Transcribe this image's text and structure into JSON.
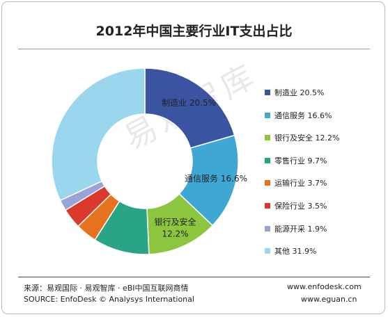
{
  "title": "2012年中国主要行业IT支出占比",
  "watermark": "易观智库",
  "chart_data": {
    "type": "pie",
    "variant": "donut",
    "title": "2012年中国主要行业IT支出占比",
    "legend_position": "right",
    "slices": [
      {
        "name": "制造业",
        "value": 20.5,
        "label": "20.5%",
        "color": "#3a54a2",
        "slice_label": [
          "制造业 20.5%"
        ],
        "label_color": "#222222"
      },
      {
        "name": "通信服务",
        "value": 16.6,
        "label": "16.6%",
        "color": "#3fa7d4",
        "slice_label": [
          "通信服务 16.6%"
        ],
        "label_color": "#222222"
      },
      {
        "name": "银行及安全",
        "value": 12.2,
        "label": "12.2%",
        "color": "#8cc63e",
        "slice_label": [
          "银行及安全",
          "12.2%"
        ],
        "label_color": "#222222"
      },
      {
        "name": "零售行业",
        "value": 9.7,
        "label": "9.7%",
        "color": "#2aa487",
        "slice_label": [],
        "label_color": "#222222"
      },
      {
        "name": "运输行业",
        "value": 3.7,
        "label": "3.7%",
        "color": "#e8731f",
        "slice_label": [],
        "label_color": "#222222"
      },
      {
        "name": "保险行业",
        "value": 3.5,
        "label": "3.5%",
        "color": "#d93a2b",
        "slice_label": [],
        "label_color": "#222222"
      },
      {
        "name": "能源开采",
        "value": 1.9,
        "label": "1.9%",
        "color": "#9aa3d8",
        "slice_label": [],
        "label_color": "#222222"
      },
      {
        "name": "其他",
        "value": 31.9,
        "label": "31.9%",
        "color": "#9ad6ee",
        "slice_label": [],
        "label_color": "#222222"
      }
    ]
  },
  "footer": {
    "source_cn": "来源：易观国际 · 易观智库 · eBI中国互联网商情",
    "source_en": "SOURCE: EnfoDesk © Analysys International",
    "url1": "www.enfodesk.com",
    "url2": "www.eguan.cn"
  }
}
